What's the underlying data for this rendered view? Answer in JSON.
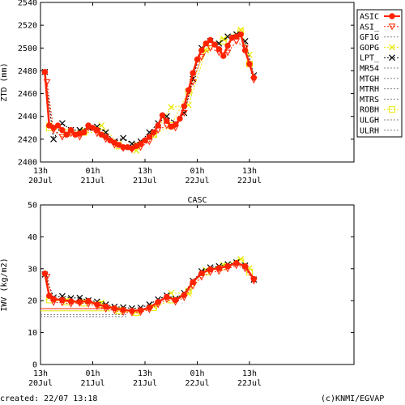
{
  "footer": {
    "created": "created: 22/07 13:18",
    "credit": "(c)KNMI/EGVAP"
  },
  "legend": {
    "entries": [
      {
        "label": "ASIC",
        "color": "#ff2200",
        "style": "solid",
        "marker": "dot"
      },
      {
        "label": "ASI_",
        "color": "#ff2200",
        "style": "dotted",
        "marker": "tri"
      },
      {
        "label": "GF1G",
        "color": "#808080",
        "style": "dotted",
        "marker": "none"
      },
      {
        "label": "GOPG",
        "color": "#e8e800",
        "style": "dotted",
        "marker": "x"
      },
      {
        "label": "LPT_",
        "color": "#000000",
        "style": "dotted",
        "marker": "x"
      },
      {
        "label": "MR54",
        "color": "#808080",
        "style": "dotted",
        "marker": "none"
      },
      {
        "label": "MTGH",
        "color": "#808080",
        "style": "dotted",
        "marker": "none"
      },
      {
        "label": "MTRH",
        "color": "#808080",
        "style": "dotted",
        "marker": "none"
      },
      {
        "label": "MTRS",
        "color": "#808080",
        "style": "dotted",
        "marker": "none"
      },
      {
        "label": "ROBH",
        "color": "#e8e800",
        "style": "dotted",
        "marker": "square"
      },
      {
        "label": "ULGH",
        "color": "#808080",
        "style": "dotted",
        "marker": "none"
      },
      {
        "label": "ULRH",
        "color": "#808080",
        "style": "dotted",
        "marker": "none"
      }
    ]
  },
  "chart_data": [
    {
      "type": "line",
      "title": "",
      "xlabel": "",
      "ylabel": "ZTD (mm)",
      "ylim": [
        2400,
        2540
      ],
      "yticks": [
        2400,
        2420,
        2440,
        2460,
        2480,
        2500,
        2520,
        2540
      ],
      "xlim_hours": [
        0,
        72
      ],
      "xticks": [
        {
          "hour": 0,
          "l1": "13h",
          "l2": "20Jul"
        },
        {
          "hour": 12,
          "l1": "01h",
          "l2": "21Jul"
        },
        {
          "hour": 24,
          "l1": "13h",
          "l2": "21Jul"
        },
        {
          "hour": 36,
          "l1": "01h",
          "l2": "22Jul"
        },
        {
          "hour": 48,
          "l1": "13h",
          "l2": "22Jul"
        }
      ],
      "grid": false,
      "series": [
        {
          "name": "ASIC",
          "points": [
            [
              1,
              2479
            ],
            [
              2,
              2432
            ],
            [
              3,
              2430
            ],
            [
              4,
              2432
            ],
            [
              5,
              2428
            ],
            [
              6,
              2424
            ],
            [
              7,
              2428
            ],
            [
              8,
              2424
            ],
            [
              9,
              2425
            ],
            [
              10,
              2426
            ],
            [
              11,
              2432
            ],
            [
              12,
              2430
            ],
            [
              13,
              2428
            ],
            [
              14,
              2424
            ],
            [
              15,
              2422
            ],
            [
              16,
              2419
            ],
            [
              17,
              2417
            ],
            [
              18,
              2415
            ],
            [
              19,
              2413
            ],
            [
              20,
              2413
            ],
            [
              21,
              2412
            ],
            [
              22,
              2414
            ],
            [
              23,
              2416
            ],
            [
              24,
              2419
            ],
            [
              25,
              2422
            ],
            [
              26,
              2426
            ],
            [
              27,
              2432
            ],
            [
              28,
              2441
            ],
            [
              29,
              2436
            ],
            [
              30,
              2431
            ],
            [
              31,
              2433
            ],
            [
              32,
              2438
            ],
            [
              33,
              2449
            ],
            [
              34,
              2463
            ],
            [
              35,
              2478
            ],
            [
              36,
              2490
            ],
            [
              37,
              2498
            ],
            [
              38,
              2504
            ],
            [
              39,
              2507
            ],
            [
              40,
              2503
            ],
            [
              41,
              2499
            ],
            [
              42,
              2493
            ],
            [
              43,
              2502
            ],
            [
              44,
              2509
            ],
            [
              45,
              2510
            ],
            [
              46,
              2512
            ],
            [
              47,
              2498
            ],
            [
              48,
              2486
            ],
            [
              49,
              2474
            ]
          ]
        },
        {
          "name": "ASI_",
          "points": [
            [
              1.5,
              2470
            ],
            [
              3,
              2428
            ],
            [
              5,
              2422
            ],
            [
              7,
              2425
            ],
            [
              9,
              2422
            ],
            [
              11,
              2430
            ],
            [
              13,
              2425
            ],
            [
              15,
              2420
            ],
            [
              17,
              2415
            ],
            [
              19,
              2412
            ],
            [
              21,
              2411
            ],
            [
              23,
              2413
            ],
            [
              25,
              2418
            ],
            [
              27,
              2428
            ],
            [
              29,
              2432
            ],
            [
              31,
              2430
            ],
            [
              33,
              2443
            ],
            [
              35,
              2470
            ],
            [
              37,
              2492
            ],
            [
              39,
              2500
            ],
            [
              41,
              2496
            ],
            [
              43,
              2496
            ],
            [
              45,
              2506
            ],
            [
              47,
              2500
            ],
            [
              49,
              2472
            ]
          ]
        },
        {
          "name": "GOPG",
          "points": [
            [
              2,
              2432
            ],
            [
              6,
              2425
            ],
            [
              10,
              2428
            ],
            [
              14,
              2432
            ],
            [
              18,
              2416
            ],
            [
              22,
              2410
            ],
            [
              26,
              2424
            ],
            [
              30,
              2448
            ],
            [
              34,
              2450
            ],
            [
              38,
              2498
            ],
            [
              42,
              2508
            ],
            [
              46,
              2516
            ],
            [
              48,
              2494
            ]
          ]
        },
        {
          "name": "LPT_",
          "points": [
            [
              1,
              2479
            ],
            [
              3,
              2420
            ],
            [
              5,
              2434
            ],
            [
              7,
              2428
            ],
            [
              9,
              2428
            ],
            [
              11,
              2430
            ],
            [
              13,
              2431
            ],
            [
              15,
              2426
            ],
            [
              17,
              2418
            ],
            [
              19,
              2421
            ],
            [
              21,
              2416
            ],
            [
              23,
              2418
            ],
            [
              25,
              2426
            ],
            [
              27,
              2434
            ],
            [
              29,
              2440
            ],
            [
              31,
              2434
            ],
            [
              33,
              2443
            ],
            [
              35,
              2473
            ],
            [
              37,
              2500
            ],
            [
              39,
              2506
            ],
            [
              41,
              2504
            ],
            [
              43,
              2510
            ],
            [
              45,
              2512
            ],
            [
              47,
              2506
            ],
            [
              49,
              2476
            ]
          ]
        },
        {
          "name": "ROBH",
          "points": [
            [
              2,
              2430
            ],
            [
              6,
              2426
            ],
            [
              10,
              2426
            ],
            [
              14,
              2426
            ],
            [
              18,
              2414
            ],
            [
              22,
              2414
            ],
            [
              26,
              2424
            ],
            [
              30,
              2432
            ],
            [
              34,
              2462
            ],
            [
              38,
              2500
            ],
            [
              42,
              2506
            ],
            [
              46,
              2514
            ],
            [
              48,
              2486
            ]
          ]
        }
      ]
    },
    {
      "type": "line",
      "title": "CASC",
      "xlabel": "",
      "ylabel": "IWV (kg/m2)",
      "ylim": [
        0,
        50
      ],
      "yticks": [
        0,
        10,
        20,
        30,
        40,
        50
      ],
      "xlim_hours": [
        0,
        72
      ],
      "xticks": [
        {
          "hour": 0,
          "l1": "13h",
          "l2": "20Jul"
        },
        {
          "hour": 12,
          "l1": "01h",
          "l2": "21Jul"
        },
        {
          "hour": 24,
          "l1": "13h",
          "l2": "21Jul"
        },
        {
          "hour": 36,
          "l1": "01h",
          "l2": "22Jul"
        },
        {
          "hour": 48,
          "l1": "13h",
          "l2": "22Jul"
        }
      ],
      "grid": false,
      "series": [
        {
          "name": "ASIC",
          "points": [
            [
              1,
              28.5
            ],
            [
              2,
              21.5
            ],
            [
              3,
              20.5
            ],
            [
              5,
              20.2
            ],
            [
              7,
              19.8
            ],
            [
              9,
              19.6
            ],
            [
              11,
              19.9
            ],
            [
              13,
              18.8
            ],
            [
              15,
              18.2
            ],
            [
              17,
              17.6
            ],
            [
              19,
              17.1
            ],
            [
              21,
              16.8
            ],
            [
              23,
              17.0
            ],
            [
              25,
              17.8
            ],
            [
              27,
              19.6
            ],
            [
              29,
              21.2
            ],
            [
              31,
              20.2
            ],
            [
              33,
              21.8
            ],
            [
              35,
              25.8
            ],
            [
              37,
              28.6
            ],
            [
              39,
              29.8
            ],
            [
              41,
              30.2
            ],
            [
              43,
              30.8
            ],
            [
              45,
              31.8
            ],
            [
              47,
              30.8
            ],
            [
              49,
              26.8
            ]
          ]
        },
        {
          "name": "ASI_",
          "points": [
            [
              1.5,
              27.5
            ],
            [
              3,
              19.5
            ],
            [
              5,
              19.4
            ],
            [
              7,
              19.0
            ],
            [
              9,
              19.2
            ],
            [
              11,
              19.0
            ],
            [
              13,
              18.2
            ],
            [
              15,
              17.4
            ],
            [
              17,
              16.9
            ],
            [
              19,
              16.4
            ],
            [
              21,
              16.2
            ],
            [
              23,
              16.4
            ],
            [
              25,
              17.2
            ],
            [
              27,
              18.8
            ],
            [
              29,
              20.4
            ],
            [
              31,
              19.6
            ],
            [
              33,
              21.0
            ],
            [
              35,
              24.6
            ],
            [
              37,
              27.4
            ],
            [
              39,
              28.9
            ],
            [
              41,
              29.2
            ],
            [
              43,
              30.0
            ],
            [
              45,
              31.0
            ],
            [
              47,
              30.0
            ],
            [
              49,
              26.2
            ]
          ]
        },
        {
          "name": "GOPG",
          "points": [
            [
              2,
              21.0
            ],
            [
              6,
              20.2
            ],
            [
              10,
              19.8
            ],
            [
              14,
              19.4
            ],
            [
              18,
              17.2
            ],
            [
              22,
              16.6
            ],
            [
              26,
              18.2
            ],
            [
              30,
              22.4
            ],
            [
              34,
              22.2
            ],
            [
              38,
              29.6
            ],
            [
              42,
              31.2
            ],
            [
              46,
              33.0
            ],
            [
              48,
              30.2
            ]
          ]
        },
        {
          "name": "LPT_",
          "points": [
            [
              1,
              28.2
            ],
            [
              3,
              21.0
            ],
            [
              5,
              21.4
            ],
            [
              7,
              20.8
            ],
            [
              9,
              20.9
            ],
            [
              11,
              20.1
            ],
            [
              13,
              19.7
            ],
            [
              15,
              18.8
            ],
            [
              17,
              18.1
            ],
            [
              19,
              17.9
            ],
            [
              21,
              17.6
            ],
            [
              23,
              17.8
            ],
            [
              25,
              18.8
            ],
            [
              27,
              20.4
            ],
            [
              29,
              21.6
            ],
            [
              31,
              20.6
            ],
            [
              33,
              22.4
            ],
            [
              35,
              26.2
            ],
            [
              37,
              29.2
            ],
            [
              39,
              30.4
            ],
            [
              41,
              30.8
            ],
            [
              43,
              31.4
            ],
            [
              45,
              32.0
            ],
            [
              47,
              31.0
            ],
            [
              49,
              26.6
            ]
          ]
        },
        {
          "name": "ROBH",
          "points": [
            [
              2,
              20.2
            ],
            [
              6,
              19.6
            ],
            [
              10,
              19.2
            ],
            [
              14,
              18.8
            ],
            [
              18,
              16.8
            ],
            [
              22,
              16.2
            ],
            [
              26,
              17.8
            ],
            [
              30,
              20.2
            ],
            [
              34,
              23.0
            ],
            [
              38,
              29.0
            ],
            [
              42,
              30.6
            ],
            [
              46,
              32.2
            ],
            [
              48,
              29.0
            ]
          ]
        }
      ],
      "reference_lines": [
        {
          "color": "#ff2200",
          "style": "solid",
          "y": 17.5,
          "x": [
            0,
            16
          ]
        },
        {
          "color": "#e8e800",
          "style": "solid",
          "y": 16.8,
          "x": [
            0,
            16
          ]
        },
        {
          "color": "#808080",
          "style": "dotted",
          "y": 15.6,
          "x": [
            0,
            20
          ]
        },
        {
          "color": "#808080",
          "style": "dotted",
          "y": 15.0,
          "x": [
            0,
            20
          ]
        }
      ]
    }
  ]
}
